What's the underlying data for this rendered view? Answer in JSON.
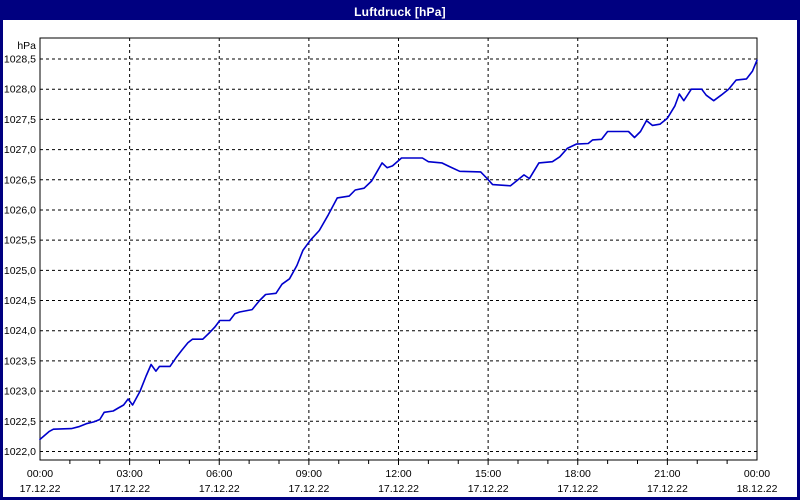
{
  "window": {
    "title": "Luftdruck [hPa]",
    "titlebar_color": "#000080",
    "border_color": "#000080",
    "background_color": "#ffffff"
  },
  "chart_data": {
    "type": "line",
    "title": "Luftdruck [hPa]",
    "unit_label": "hPa",
    "grid": "dashed",
    "legend_position": "none",
    "line_color": "#0000cc",
    "axis_color": "#000000",
    "ylim": [
      1022.0,
      1028.5
    ],
    "ytick_step": 0.5,
    "yticks": [
      {
        "value": 1028.5,
        "label": "1028,5"
      },
      {
        "value": 1028.0,
        "label": "1028,0"
      },
      {
        "value": 1027.5,
        "label": "1027,5"
      },
      {
        "value": 1027.0,
        "label": "1027,0"
      },
      {
        "value": 1026.5,
        "label": "1026,5"
      },
      {
        "value": 1026.0,
        "label": "1026,0"
      },
      {
        "value": 1025.5,
        "label": "1025,5"
      },
      {
        "value": 1025.0,
        "label": "1025,0"
      },
      {
        "value": 1024.5,
        "label": "1024,5"
      },
      {
        "value": 1024.0,
        "label": "1024,0"
      },
      {
        "value": 1023.5,
        "label": "1023,5"
      },
      {
        "value": 1023.0,
        "label": "1023,0"
      },
      {
        "value": 1022.5,
        "label": "1022,5"
      },
      {
        "value": 1022.0,
        "label": "1022,0"
      }
    ],
    "x_hours_range": [
      0,
      24
    ],
    "x_minor_tick_hours": 1,
    "xticks": [
      {
        "hour": 0,
        "time": "00:00",
        "date": "17.12.22"
      },
      {
        "hour": 3,
        "time": "03:00",
        "date": "17.12.22"
      },
      {
        "hour": 6,
        "time": "06:00",
        "date": "17.12.22"
      },
      {
        "hour": 9,
        "time": "09:00",
        "date": "17.12.22"
      },
      {
        "hour": 12,
        "time": "12:00",
        "date": "17.12.22"
      },
      {
        "hour": 15,
        "time": "15:00",
        "date": "17.12.22"
      },
      {
        "hour": 18,
        "time": "18:00",
        "date": "17.12.22"
      },
      {
        "hour": 21,
        "time": "21:00",
        "date": "17.12.22"
      },
      {
        "hour": 24,
        "time": "00:00",
        "date": "18.12.22"
      }
    ],
    "series": [
      {
        "name": "Luftdruck",
        "points_hour_hpa": [
          [
            0,
            1022.2
          ],
          [
            0.3,
            1022.33
          ],
          [
            0.45,
            1022.37
          ],
          [
            1.05,
            1022.38
          ],
          [
            1.3,
            1022.41
          ],
          [
            1.55,
            1022.46
          ],
          [
            1.8,
            1022.49
          ],
          [
            2.0,
            1022.53
          ],
          [
            2.15,
            1022.65
          ],
          [
            2.45,
            1022.67
          ],
          [
            2.62,
            1022.72
          ],
          [
            2.8,
            1022.77
          ],
          [
            2.95,
            1022.87
          ],
          [
            3.1,
            1022.77
          ],
          [
            3.35,
            1023.0
          ],
          [
            3.55,
            1023.25
          ],
          [
            3.72,
            1023.44
          ],
          [
            3.88,
            1023.33
          ],
          [
            4.0,
            1023.41
          ],
          [
            4.35,
            1023.41
          ],
          [
            4.55,
            1023.55
          ],
          [
            4.75,
            1023.68
          ],
          [
            4.95,
            1023.8
          ],
          [
            5.1,
            1023.86
          ],
          [
            5.45,
            1023.86
          ],
          [
            5.68,
            1023.97
          ],
          [
            5.85,
            1024.06
          ],
          [
            6.02,
            1024.17
          ],
          [
            6.35,
            1024.17
          ],
          [
            6.52,
            1024.28
          ],
          [
            6.68,
            1024.31
          ],
          [
            7.1,
            1024.35
          ],
          [
            7.35,
            1024.5
          ],
          [
            7.55,
            1024.6
          ],
          [
            7.9,
            1024.62
          ],
          [
            8.1,
            1024.77
          ],
          [
            8.35,
            1024.86
          ],
          [
            8.6,
            1025.08
          ],
          [
            8.8,
            1025.33
          ],
          [
            9.05,
            1025.5
          ],
          [
            9.35,
            1025.66
          ],
          [
            9.65,
            1025.92
          ],
          [
            9.95,
            1026.2
          ],
          [
            10.35,
            1026.23
          ],
          [
            10.55,
            1026.33
          ],
          [
            10.85,
            1026.36
          ],
          [
            11.1,
            1026.48
          ],
          [
            11.3,
            1026.65
          ],
          [
            11.45,
            1026.78
          ],
          [
            11.62,
            1026.7
          ],
          [
            11.8,
            1026.73
          ],
          [
            12.1,
            1026.86
          ],
          [
            12.8,
            1026.86
          ],
          [
            13.0,
            1026.8
          ],
          [
            13.45,
            1026.78
          ],
          [
            13.7,
            1026.72
          ],
          [
            14.05,
            1026.64
          ],
          [
            14.75,
            1026.63
          ],
          [
            14.95,
            1026.53
          ],
          [
            15.15,
            1026.42
          ],
          [
            15.75,
            1026.4
          ],
          [
            16.0,
            1026.5
          ],
          [
            16.2,
            1026.58
          ],
          [
            16.38,
            1026.52
          ],
          [
            16.7,
            1026.78
          ],
          [
            17.15,
            1026.8
          ],
          [
            17.4,
            1026.88
          ],
          [
            17.65,
            1027.02
          ],
          [
            17.95,
            1027.09
          ],
          [
            18.35,
            1027.1
          ],
          [
            18.5,
            1027.16
          ],
          [
            18.8,
            1027.17
          ],
          [
            19.0,
            1027.3
          ],
          [
            19.7,
            1027.3
          ],
          [
            19.9,
            1027.2
          ],
          [
            20.1,
            1027.3
          ],
          [
            20.3,
            1027.48
          ],
          [
            20.5,
            1027.4
          ],
          [
            20.75,
            1027.42
          ],
          [
            21.0,
            1027.52
          ],
          [
            21.25,
            1027.72
          ],
          [
            21.4,
            1027.92
          ],
          [
            21.55,
            1027.81
          ],
          [
            21.8,
            1028.0
          ],
          [
            22.15,
            1028.0
          ],
          [
            22.3,
            1027.9
          ],
          [
            22.55,
            1027.81
          ],
          [
            22.8,
            1027.9
          ],
          [
            23.05,
            1028.0
          ],
          [
            23.3,
            1028.15
          ],
          [
            23.65,
            1028.17
          ],
          [
            23.85,
            1028.3
          ],
          [
            24.0,
            1028.48
          ]
        ]
      }
    ]
  }
}
